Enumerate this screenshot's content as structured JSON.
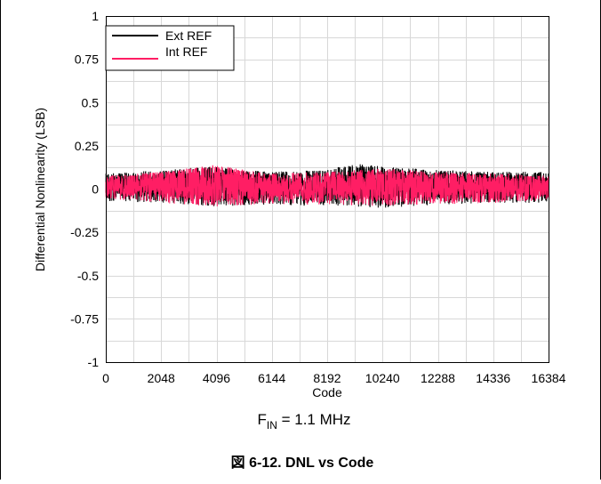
{
  "caption": "図 6-12. DNL vs Code",
  "subcaption": {
    "main": "F",
    "sub": "IN",
    "rest": " = 1.1 MHz"
  },
  "chart_data": {
    "type": "line",
    "title": "",
    "xlabel": "Code",
    "ylabel": "Differential Nonlinearity (LSB)",
    "xlim": [
      0,
      16384
    ],
    "ylim": [
      -1,
      1
    ],
    "grid": true,
    "legend_position": "top-left",
    "x_ticks": [
      0,
      2048,
      4096,
      6144,
      8192,
      10240,
      12288,
      14336,
      16384
    ],
    "x_tick_labels": [
      "0",
      "2048",
      "4096",
      "6144",
      "8192",
      "10240",
      "12288",
      "14336",
      "16384"
    ],
    "y_ticks": [
      1,
      0.75,
      0.5,
      0.25,
      0,
      -0.25,
      -0.5,
      -0.75,
      -1
    ],
    "y_tick_labels": [
      "1",
      "0.75",
      "0.5",
      "0.25",
      "0",
      "-0.25",
      "-0.5",
      "-0.75",
      "-1"
    ],
    "series": [
      {
        "name": "Ext REF",
        "color": "#000000",
        "x_range": [
          0,
          16383
        ],
        "upper_envelope": [
          [
            150,
            0.09
          ],
          [
            2000,
            0.11
          ],
          [
            4000,
            0.13
          ],
          [
            6000,
            0.1
          ],
          [
            8192,
            0.11
          ],
          [
            9100,
            0.15
          ],
          [
            10240,
            0.13
          ],
          [
            12288,
            0.11
          ],
          [
            14336,
            0.1
          ],
          [
            16000,
            0.1
          ]
        ],
        "lower_envelope": [
          [
            150,
            -0.07
          ],
          [
            2000,
            -0.08
          ],
          [
            4000,
            -0.1
          ],
          [
            6000,
            -0.09
          ],
          [
            8192,
            -0.1
          ],
          [
            10240,
            -0.11
          ],
          [
            12288,
            -0.09
          ],
          [
            14336,
            -0.08
          ],
          [
            16000,
            -0.08
          ]
        ]
      },
      {
        "name": "Int REF",
        "color": "#ff1e64",
        "x_range": [
          0,
          16383
        ],
        "upper_envelope": [
          [
            150,
            0.08
          ],
          [
            2000,
            0.1
          ],
          [
            4096,
            0.14
          ],
          [
            6000,
            0.09
          ],
          [
            8192,
            0.1
          ],
          [
            10240,
            0.12
          ],
          [
            12288,
            0.1
          ],
          [
            14336,
            0.09
          ],
          [
            16000,
            0.08
          ]
        ],
        "lower_envelope": [
          [
            150,
            -0.06
          ],
          [
            2000,
            -0.08
          ],
          [
            4096,
            -0.1
          ],
          [
            6000,
            -0.09
          ],
          [
            8192,
            -0.09
          ],
          [
            10240,
            -0.1
          ],
          [
            12288,
            -0.09
          ],
          [
            14336,
            -0.08
          ],
          [
            16000,
            -0.07
          ]
        ]
      }
    ]
  }
}
